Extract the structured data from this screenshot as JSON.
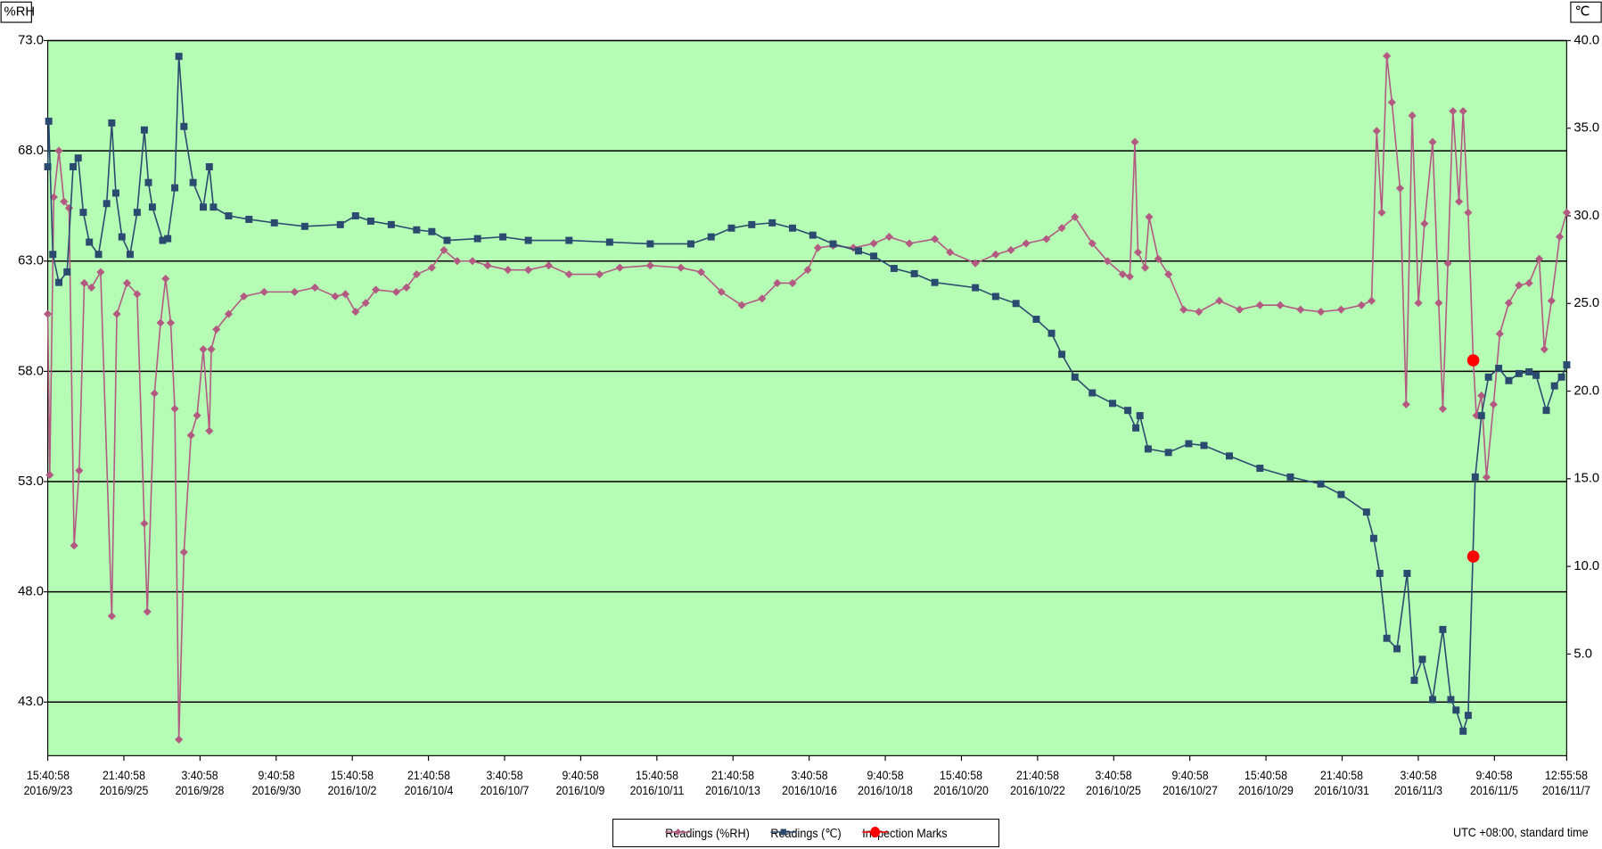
{
  "chart_data": {
    "type": "line",
    "ylabel": "%RH",
    "y2label": "℃",
    "annotation": "UTC +08:00, standard time",
    "background": "#b5fdb5",
    "grid": true,
    "legend": "bottom",
    "xlim": [
      0,
      1077.25
    ],
    "xticks": [
      {
        "value": 0,
        "label": "15:40:58\n2016/9/23"
      },
      {
        "value": 54,
        "label": "21:40:58\n2016/9/25"
      },
      {
        "value": 108,
        "label": "3:40:58\n2016/9/28"
      },
      {
        "value": 162,
        "label": "9:40:58\n2016/9/30"
      },
      {
        "value": 216,
        "label": "15:40:58\n2016/10/2"
      },
      {
        "value": 270,
        "label": "21:40:58\n2016/10/4"
      },
      {
        "value": 324,
        "label": "3:40:58\n2016/10/7"
      },
      {
        "value": 378,
        "label": "9:40:58\n2016/10/9"
      },
      {
        "value": 432,
        "label": "15:40:58\n2016/10/11"
      },
      {
        "value": 486,
        "label": "21:40:58\n2016/10/13"
      },
      {
        "value": 540,
        "label": "3:40:58\n2016/10/16"
      },
      {
        "value": 594,
        "label": "9:40:58\n2016/10/18"
      },
      {
        "value": 648,
        "label": "15:40:58\n2016/10/20"
      },
      {
        "value": 702,
        "label": "21:40:58\n2016/10/22"
      },
      {
        "value": 756,
        "label": "3:40:58\n2016/10/25"
      },
      {
        "value": 810,
        "label": "9:40:58\n2016/10/27"
      },
      {
        "value": 864,
        "label": "15:40:58\n2016/10/29"
      },
      {
        "value": 918,
        "label": "21:40:58\n2016/10/31"
      },
      {
        "value": 972,
        "label": "3:40:58\n2016/11/3"
      },
      {
        "value": 1026,
        "label": "9:40:58\n2016/11/5"
      },
      {
        "value": 1077.25,
        "label": "12:55:58\n2016/11/7"
      }
    ],
    "ylim": [
      40.57,
      73
    ],
    "yticks": [
      {
        "value": 43,
        "label": "43.0"
      },
      {
        "value": 48,
        "label": "48.0"
      },
      {
        "value": 53,
        "label": "53.0"
      },
      {
        "value": 58,
        "label": "58.0"
      },
      {
        "value": 63,
        "label": "63.0"
      },
      {
        "value": 68,
        "label": "68.0"
      },
      {
        "value": 73,
        "label": "73.0"
      }
    ],
    "y2lim": [
      -0.8,
      40
    ],
    "y2ticks": [
      {
        "value": 5,
        "label": "5.0"
      },
      {
        "value": 10,
        "label": "10.0"
      },
      {
        "value": 15,
        "label": "15.0"
      },
      {
        "value": 20,
        "label": "20.0"
      },
      {
        "value": 25,
        "label": "25.0"
      },
      {
        "value": 30,
        "label": "30.0"
      },
      {
        "value": 35,
        "label": "35.0"
      },
      {
        "value": 40,
        "label": "40.0"
      }
    ],
    "series": [
      {
        "name": "Readings (%RH)",
        "color": "#b35a83",
        "marker": "diamond",
        "line": true,
        "x": [
          0,
          1.4,
          4.3,
          7.9,
          11.5,
          15.1,
          18.7,
          22.3,
          25.9,
          31.0,
          37.5,
          45.4,
          49.0,
          56.2,
          63.4,
          68.5,
          70.6,
          75.7,
          80.0,
          83.6,
          87.2,
          90.1,
          93.0,
          96.6,
          101.6,
          105.9,
          110.3,
          114.6,
          116.0,
          119.6,
          128.3,
          139.1,
          153.5,
          175.1,
          189.5,
          203.9,
          211.1,
          218.3,
          225.5,
          232.7,
          247.2,
          254.4,
          261.6,
          272.4,
          281.0,
          290.4,
          301.2,
          312.0,
          326.4,
          340.8,
          355.3,
          369.7,
          391.3,
          405.7,
          427.3,
          449.0,
          463.4,
          477.8,
          492.2,
          506.6,
          517.4,
          528.2,
          539.0,
          546.2,
          557.0,
          571.4,
          585.8,
          596.7,
          611.1,
          629.1,
          639.9,
          657.9,
          672.3,
          683.1,
          693.9,
          708.3,
          719.2,
          728.5,
          740.8,
          751.6,
          762.4,
          767.4,
          771.0,
          773.2,
          778.3,
          781.1,
          787.6,
          794.8,
          805.6,
          816.4,
          830.9,
          845.3,
          859.7,
          874.1,
          888.5,
          902.9,
          917.3,
          931.7,
          938.9,
          942.5,
          946.1,
          949.7,
          953.3,
          959.1,
          963.4,
          967.7,
          972.1,
          976.4,
          982.2,
          986.5,
          989.4,
          993.0,
          996.6,
          1000.9,
          1003.8,
          1007.4,
          1011.0,
          1013.2,
          1016.8,
          1020.4,
          1025.4,
          1029.8,
          1036.2,
          1043.4,
          1050.6,
          1057.8,
          1061.4,
          1066.5,
          1072.3,
          1077.3
        ],
        "values": [
          60.6,
          53.3,
          65.9,
          68,
          65.7,
          65.4,
          50.1,
          53.5,
          62.0,
          61.8,
          62.5,
          46.9,
          60.6,
          62.0,
          61.5,
          51.1,
          47.1,
          57.0,
          60.2,
          62.2,
          60.2,
          56.3,
          41.3,
          49.8,
          55.1,
          56.0,
          59.0,
          55.3,
          59.0,
          59.9,
          60.6,
          61.4,
          61.6,
          61.6,
          61.8,
          61.4,
          61.5,
          60.7,
          61.1,
          61.7,
          61.6,
          61.8,
          62.4,
          62.7,
          63.5,
          63.0,
          63.0,
          62.8,
          62.6,
          62.6,
          62.8,
          62.4,
          62.4,
          62.7,
          62.8,
          62.7,
          62.5,
          61.6,
          61.0,
          61.3,
          62.0,
          62.0,
          62.6,
          63.6,
          63.7,
          63.6,
          63.8,
          64.1,
          63.8,
          64.0,
          63.4,
          62.9,
          63.3,
          63.5,
          63.8,
          64.0,
          64.5,
          65.0,
          63.8,
          63.0,
          62.4,
          62.3,
          68.4,
          63.4,
          62.7,
          65.0,
          63.1,
          62.4,
          60.8,
          60.7,
          61.2,
          60.8,
          61.0,
          61.0,
          60.8,
          60.7,
          60.8,
          61.0,
          61.2,
          68.9,
          65.2,
          72.3,
          70.2,
          66.3,
          56.5,
          69.6,
          61.1,
          64.7,
          68.4,
          61.1,
          56.3,
          62.9,
          69.8,
          65.7,
          69.8,
          65.2,
          58.5,
          56.0,
          56.9,
          53.2,
          56.5,
          59.7,
          61.1,
          61.9,
          62.0,
          63.1,
          59.0,
          61.2,
          64.1,
          65.2
        ]
      },
      {
        "name": "Readings (℃)",
        "color": "#2b4a6f",
        "marker": "square",
        "line": true,
        "axis": "y2",
        "x": [
          0,
          0.7,
          3.6,
          7.9,
          13.7,
          18.0,
          21.6,
          25.2,
          29.5,
          36.0,
          41.8,
          45.4,
          48.3,
          52.6,
          58.4,
          63.4,
          68.5,
          71.4,
          74.2,
          81.5,
          85.1,
          90.1,
          93.0,
          96.6,
          103.1,
          110.3,
          114.6,
          117.5,
          128.3,
          142.7,
          160.7,
          182.3,
          207.5,
          218.3,
          229.1,
          243.6,
          261.6,
          272.4,
          283.2,
          304.8,
          322.8,
          340.8,
          369.7,
          398.5,
          427.3,
          456.1,
          470.5,
          484.9,
          499.3,
          513.8,
          528.2,
          542.6,
          557.0,
          575.0,
          585.8,
          600.2,
          614.6,
          629.1,
          657.9,
          672.3,
          686.7,
          701.1,
          711.9,
          719.2,
          728.5,
          740.8,
          755.2,
          766.0,
          771.7,
          774.6,
          780.4,
          794.8,
          809.2,
          820.0,
          838.0,
          859.7,
          881.3,
          902.9,
          917.3,
          935.3,
          940.4,
          944.7,
          949.7,
          956.9,
          964.1,
          969.2,
          974.9,
          982.2,
          989.4,
          995.1,
          998.8,
          1003.8,
          1007.4,
          1012.4,
          1016.8,
          1021.8,
          1029.0,
          1036.2,
          1043.4,
          1050.6,
          1055.6,
          1062.8,
          1068.6,
          1073.6,
          1077.3
        ],
        "values": [
          32.8,
          35.4,
          27.8,
          26.2,
          26.8,
          32.8,
          33.3,
          30.2,
          28.5,
          27.8,
          30.7,
          35.3,
          31.3,
          28.8,
          27.8,
          30.2,
          34.9,
          31.9,
          30.5,
          28.6,
          28.7,
          31.6,
          39.1,
          35.1,
          31.9,
          30.5,
          32.8,
          30.5,
          30.0,
          29.8,
          29.6,
          29.4,
          29.5,
          30.0,
          29.7,
          29.5,
          29.2,
          29.1,
          28.6,
          28.7,
          28.8,
          28.6,
          28.6,
          28.5,
          28.4,
          28.4,
          28.8,
          29.3,
          29.5,
          29.6,
          29.3,
          28.9,
          28.4,
          28.0,
          27.7,
          27.0,
          26.7,
          26.2,
          25.9,
          25.4,
          25.0,
          24.1,
          23.3,
          22.1,
          20.8,
          19.9,
          19.3,
          18.9,
          17.9,
          18.6,
          16.7,
          16.5,
          17.0,
          16.9,
          16.3,
          15.6,
          15.1,
          14.7,
          14.1,
          13.1,
          11.6,
          9.6,
          5.9,
          5.3,
          9.6,
          3.5,
          4.7,
          2.4,
          6.4,
          2.4,
          1.8,
          0.6,
          1.5,
          15.1,
          18.6,
          20.8,
          21.3,
          20.6,
          21.0,
          21.1,
          20.9,
          18.9,
          20.3,
          20.8,
          21.5
        ]
      },
      {
        "name": "Inspection Marks",
        "color": "#ff0000",
        "marker": "circle",
        "line": false,
        "x": [
          1011,
          1011
        ],
        "values": [
          58.5,
          49.6
        ]
      }
    ]
  }
}
